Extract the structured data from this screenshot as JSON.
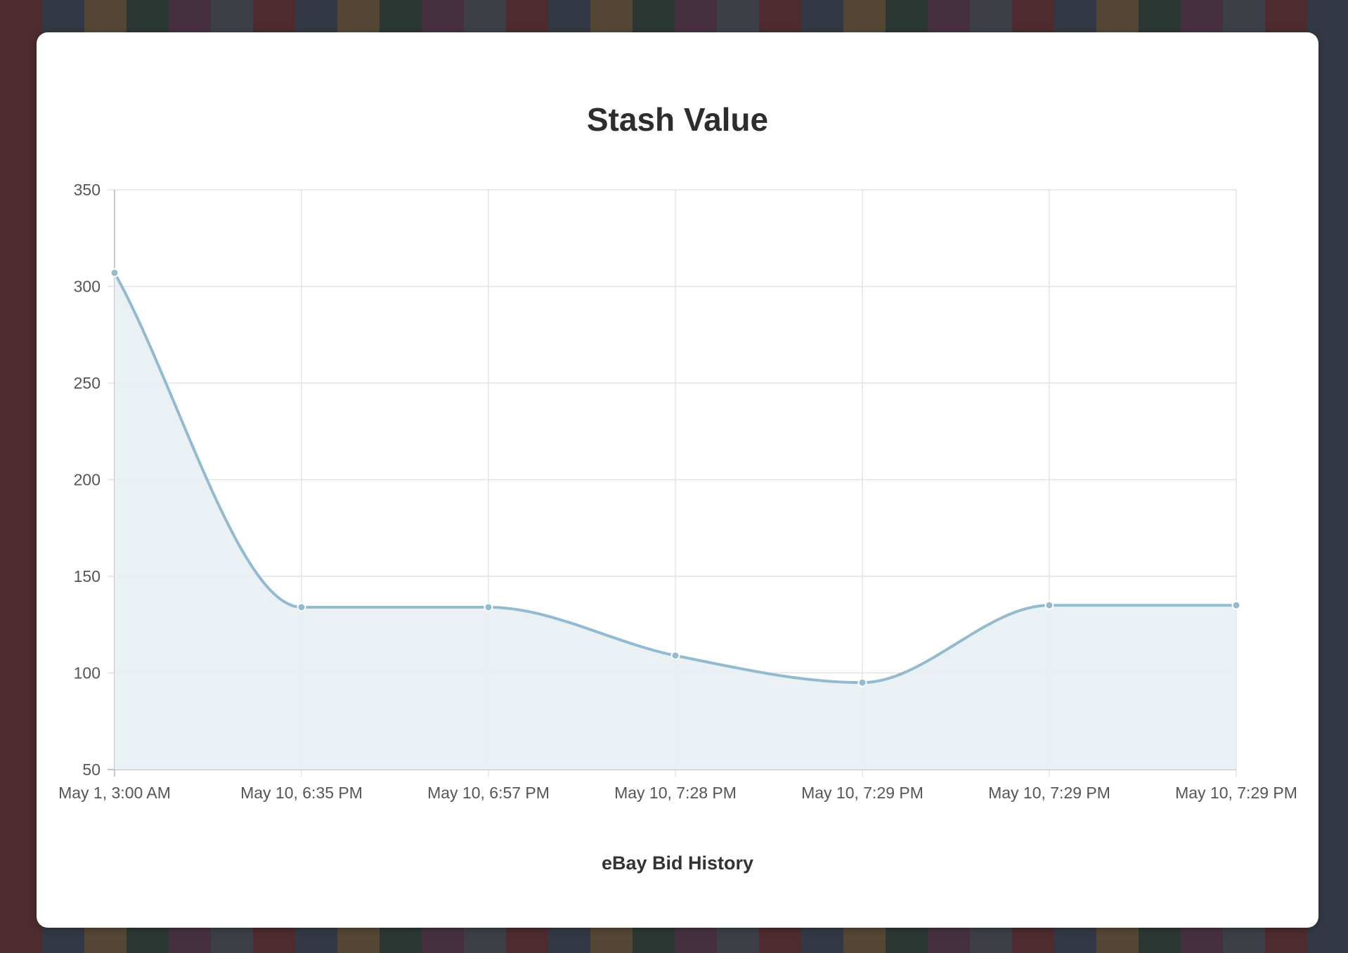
{
  "chart_data": {
    "type": "line",
    "title": "Stash Value",
    "xlabel": "eBay Bid History",
    "ylabel": "",
    "categories": [
      "May 1, 3:00 AM",
      "May 10, 6:35 PM",
      "May 10, 6:57 PM",
      "May 10, 7:28 PM",
      "May 10, 7:29 PM",
      "May 10, 7:29 PM",
      "May 10, 7:29 PM"
    ],
    "series": [
      {
        "name": "Stash Value",
        "values": [
          307,
          134,
          134,
          109,
          95,
          135,
          135
        ],
        "line_color": "#93bbd0",
        "fill_color": "#e8eff3"
      }
    ],
    "ylim": [
      50,
      350
    ],
    "yticks": [
      50,
      100,
      150,
      200,
      250,
      300,
      350
    ],
    "grid": true,
    "legend": "none"
  }
}
